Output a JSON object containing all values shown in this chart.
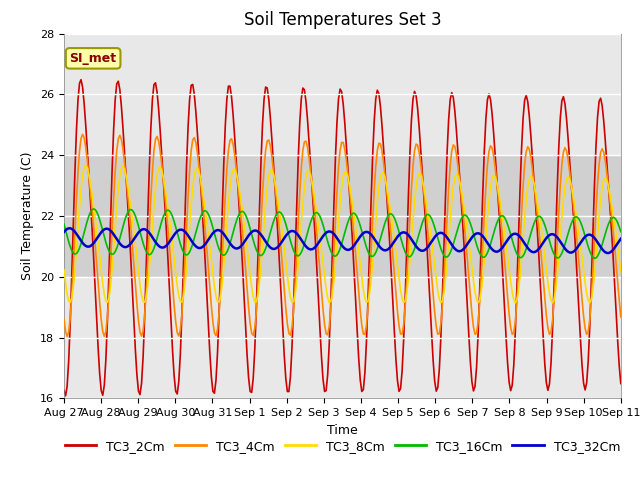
{
  "title": "Soil Temperatures Set 3",
  "xlabel": "Time",
  "ylabel": "Soil Temperature (C)",
  "ylim": [
    16,
    28
  ],
  "yticks": [
    16,
    18,
    20,
    22,
    24,
    26,
    28
  ],
  "x_labels": [
    "Aug 27",
    "Aug 28",
    "Aug 29",
    "Aug 30",
    "Aug 31",
    "Sep 1",
    "Sep 2",
    "Sep 3",
    "Sep 4",
    "Sep 5",
    "Sep 6",
    "Sep 7",
    "Sep 8",
    "Sep 9",
    "Sep 10",
    "Sep 11"
  ],
  "series_names": [
    "TC3_2Cm",
    "TC3_4Cm",
    "TC3_8Cm",
    "TC3_16Cm",
    "TC3_32Cm"
  ],
  "series_colors": [
    "#cc0000",
    "#ff8800",
    "#ffdd00",
    "#00bb00",
    "#0000cc"
  ],
  "series_linewidths": [
    1.2,
    1.2,
    1.2,
    1.2,
    1.8
  ],
  "annotation_text": "SI_met",
  "plot_bg_color": "#e8e8e8",
  "band_color_dark": "#d0d0d0",
  "title_fontsize": 12,
  "axis_label_fontsize": 9,
  "tick_fontsize": 8,
  "legend_fontsize": 9
}
